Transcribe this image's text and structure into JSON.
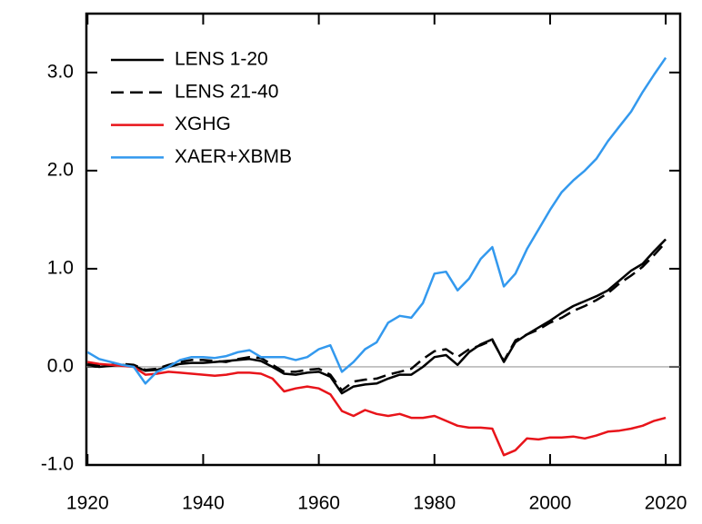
{
  "chart_data": {
    "type": "line",
    "x": [
      1920,
      1922,
      1924,
      1926,
      1928,
      1930,
      1932,
      1934,
      1936,
      1938,
      1940,
      1942,
      1944,
      1946,
      1948,
      1950,
      1952,
      1954,
      1956,
      1958,
      1960,
      1962,
      1964,
      1966,
      1968,
      1970,
      1972,
      1974,
      1976,
      1978,
      1980,
      1982,
      1984,
      1986,
      1988,
      1990,
      1992,
      1994,
      1996,
      1998,
      2000,
      2002,
      2004,
      2006,
      2008,
      2010,
      2012,
      2014,
      2016,
      2018,
      2020
    ],
    "series": [
      {
        "name": "LENS 1-20",
        "color": "#000000",
        "dashed": false,
        "values": [
          0.02,
          0.0,
          0.01,
          0.02,
          0.01,
          -0.04,
          -0.03,
          0.0,
          0.03,
          0.04,
          0.04,
          0.05,
          0.06,
          0.07,
          0.08,
          0.06,
          0.0,
          -0.07,
          -0.08,
          -0.06,
          -0.05,
          -0.1,
          -0.27,
          -0.2,
          -0.18,
          -0.17,
          -0.12,
          -0.08,
          -0.08,
          0.0,
          0.1,
          0.12,
          0.02,
          0.15,
          0.23,
          0.28,
          0.05,
          0.25,
          0.33,
          0.4,
          0.47,
          0.55,
          0.62,
          0.67,
          0.72,
          0.78,
          0.88,
          0.98,
          1.05,
          1.18,
          1.3
        ]
      },
      {
        "name": "LENS 21-40",
        "color": "#000000",
        "dashed": true,
        "values": [
          0.03,
          0.01,
          0.02,
          0.03,
          0.02,
          -0.03,
          -0.02,
          0.02,
          0.05,
          0.07,
          0.07,
          0.06,
          0.05,
          0.08,
          0.1,
          0.09,
          0.02,
          -0.05,
          -0.05,
          -0.03,
          -0.02,
          -0.08,
          -0.24,
          -0.15,
          -0.13,
          -0.12,
          -0.08,
          -0.05,
          -0.02,
          0.08,
          0.16,
          0.18,
          0.1,
          0.18,
          0.22,
          0.27,
          0.06,
          0.27,
          0.33,
          0.38,
          0.45,
          0.5,
          0.57,
          0.62,
          0.68,
          0.75,
          0.85,
          0.93,
          1.02,
          1.14,
          1.27
        ]
      },
      {
        "name": "XGHG",
        "color": "#e8141a",
        "dashed": false,
        "values": [
          0.05,
          0.03,
          0.02,
          0.01,
          0.0,
          -0.08,
          -0.07,
          -0.05,
          -0.06,
          -0.07,
          -0.08,
          -0.09,
          -0.08,
          -0.06,
          -0.06,
          -0.07,
          -0.12,
          -0.25,
          -0.22,
          -0.2,
          -0.22,
          -0.28,
          -0.45,
          -0.5,
          -0.44,
          -0.48,
          -0.5,
          -0.48,
          -0.52,
          -0.52,
          -0.5,
          -0.55,
          -0.6,
          -0.62,
          -0.62,
          -0.63,
          -0.9,
          -0.85,
          -0.73,
          -0.74,
          -0.72,
          -0.72,
          -0.71,
          -0.73,
          -0.7,
          -0.66,
          -0.65,
          -0.63,
          -0.6,
          -0.55,
          -0.52
        ]
      },
      {
        "name": "XAER+XBMB",
        "color": "#3399ee",
        "dashed": false,
        "values": [
          0.15,
          0.08,
          0.05,
          0.02,
          0.0,
          -0.17,
          -0.05,
          0.0,
          0.07,
          0.1,
          0.1,
          0.09,
          0.11,
          0.15,
          0.17,
          0.1,
          0.1,
          0.1,
          0.07,
          0.1,
          0.18,
          0.22,
          -0.05,
          0.05,
          0.18,
          0.25,
          0.45,
          0.52,
          0.5,
          0.65,
          0.95,
          0.97,
          0.78,
          0.9,
          1.1,
          1.22,
          0.82,
          0.95,
          1.2,
          1.4,
          1.6,
          1.78,
          1.9,
          2.0,
          2.12,
          2.3,
          2.45,
          2.6,
          2.8,
          2.98,
          3.15
        ]
      }
    ],
    "xlim": [
      1919.8,
      2022.5
    ],
    "ylim": [
      -1.0,
      3.6
    ],
    "xticks": [
      1920,
      1940,
      1960,
      1980,
      2000,
      2020
    ],
    "yticks": [
      {
        "value": -1,
        "label": "-1.0"
      },
      {
        "value": 0,
        "label": "0.0"
      },
      {
        "value": 1,
        "label": "1.0"
      },
      {
        "value": 2,
        "label": "2.0"
      },
      {
        "value": 3,
        "label": "3.0"
      }
    ],
    "reference_line": 0,
    "legend": "upper left"
  }
}
